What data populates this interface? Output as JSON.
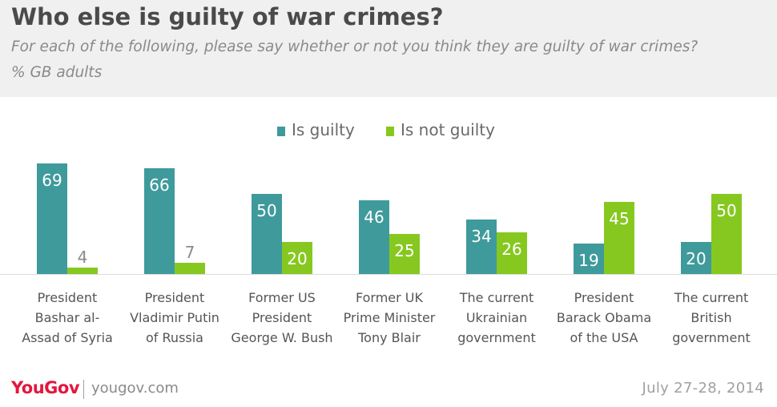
{
  "header": {
    "title": "Who else is guilty of war crimes?",
    "subtitle": "For each of the following, please say whether or not you think they are guilty of war crimes?",
    "base": "% GB adults"
  },
  "colors": {
    "guilty": "#3f9a9c",
    "not_guilty": "#86c820",
    "header_bg": "#f0f0f0",
    "logo": "#e3173e"
  },
  "chart_data": {
    "type": "bar",
    "categories": [
      [
        "President",
        "Bashar al-",
        "Assad of Syria"
      ],
      [
        "President",
        "Vladimir Putin",
        "of Russia"
      ],
      [
        "Former US",
        "President",
        "George W. Bush"
      ],
      [
        "Former UK",
        "Prime Minister",
        "Tony Blair"
      ],
      [
        "The current",
        "Ukrainian",
        "government"
      ],
      [
        "President",
        "Barack Obama",
        "of the USA"
      ],
      [
        "The current",
        "British",
        "government"
      ]
    ],
    "series": [
      {
        "name": "Is guilty",
        "values": [
          69,
          66,
          50,
          46,
          34,
          19,
          20
        ]
      },
      {
        "name": "Is not guilty",
        "values": [
          4,
          7,
          20,
          25,
          26,
          45,
          50
        ]
      }
    ],
    "ylim": [
      0,
      75
    ],
    "grid": false,
    "legend_position": "top-center"
  },
  "footer": {
    "brand": "YouGov",
    "site": "yougov.com",
    "date": "July 27-28, 2014"
  }
}
